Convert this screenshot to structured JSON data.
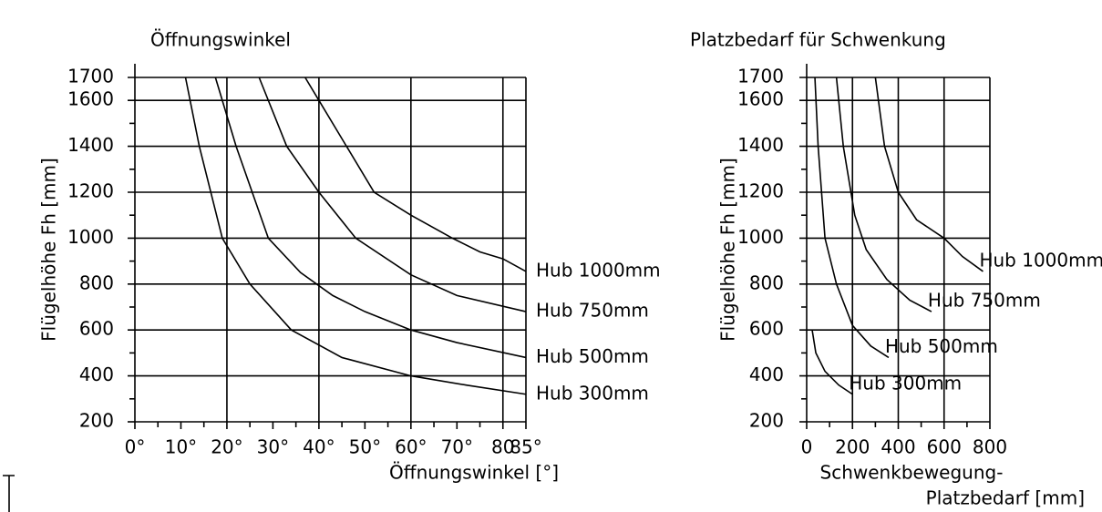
{
  "chart_data": [
    {
      "type": "line",
      "title": "Öffnungswinkel",
      "ylabel": "Flügelhöhe Fh  [mm]",
      "xlabel": [
        "Öffnungswinkel [°]"
      ],
      "xlim": [
        0,
        85
      ],
      "ylim": [
        200,
        1700
      ],
      "xticks": [
        {
          "value": 0,
          "label": "0°"
        },
        {
          "value": 10,
          "label": "10°"
        },
        {
          "value": 20,
          "label": "20°"
        },
        {
          "value": 30,
          "label": "30°"
        },
        {
          "value": 40,
          "label": "40°"
        },
        {
          "value": 50,
          "label": "50°"
        },
        {
          "value": 60,
          "label": "60°"
        },
        {
          "value": 70,
          "label": "70°"
        },
        80,
        {
          "value": 85,
          "label": "85°"
        }
      ],
      "xgrid": [
        20,
        40,
        60,
        80,
        85
      ],
      "yticks": [
        200,
        400,
        600,
        800,
        1000,
        1200,
        1400,
        1600,
        1700
      ],
      "color": "#000000",
      "series": [
        {
          "name": "Hub 1000mm",
          "x": [
            37,
            40,
            46,
            52,
            60,
            69,
            75,
            80,
            85
          ],
          "values": [
            1700,
            1600,
            1400,
            1200,
            1100,
            1000,
            940,
            910,
            855
          ]
        },
        {
          "name": "Hub 750mm",
          "x": [
            27,
            33,
            40,
            48,
            60,
            70,
            85
          ],
          "values": [
            1700,
            1400,
            1200,
            1000,
            840,
            750,
            680
          ]
        },
        {
          "name": "Hub 500mm",
          "x": [
            17.5,
            22,
            29,
            36,
            43,
            50,
            60,
            70,
            85
          ],
          "values": [
            1700,
            1400,
            1000,
            850,
            750,
            680,
            600,
            545,
            480
          ]
        },
        {
          "name": "Hub 300mm",
          "x": [
            11,
            14,
            19,
            25,
            34,
            45,
            60,
            72,
            85
          ],
          "values": [
            1700,
            1400,
            1000,
            800,
            600,
            480,
            400,
            360,
            320
          ]
        }
      ]
    },
    {
      "type": "line",
      "title": "Platzbedarf für Schwenkung",
      "ylabel": "Flügelhöhe Fh  [mm]",
      "xlabel": [
        "Schwenkbewegung-",
        "Platzbedarf [mm]"
      ],
      "xlim": [
        0,
        800
      ],
      "ylim": [
        200,
        1700
      ],
      "xticks": [
        0,
        200,
        400,
        600,
        800
      ],
      "xgrid": [
        200,
        400,
        600,
        800
      ],
      "yticks": [
        200,
        400,
        600,
        800,
        1000,
        1200,
        1400,
        1600,
        1700
      ],
      "color": "#000000",
      "series": [
        {
          "name": "Hub 1000mm",
          "x": [
            300,
            340,
            400,
            480,
            600,
            680,
            770
          ],
          "values": [
            1700,
            1400,
            1200,
            1080,
            1000,
            920,
            855
          ]
        },
        {
          "name": "Hub 750mm",
          "x": [
            130,
            160,
            210,
            260,
            350,
            450,
            545
          ],
          "values": [
            1700,
            1400,
            1100,
            950,
            820,
            730,
            680
          ]
        },
        {
          "name": "Hub 500mm",
          "x": [
            36,
            50,
            80,
            130,
            200,
            280,
            358
          ],
          "values": [
            1700,
            1400,
            1000,
            800,
            620,
            530,
            480
          ]
        },
        {
          "name": "Hub 300mm",
          "x": [
            24,
            40,
            80,
            140,
            200
          ],
          "values": [
            600,
            500,
            420,
            360,
            320
          ]
        }
      ]
    }
  ]
}
